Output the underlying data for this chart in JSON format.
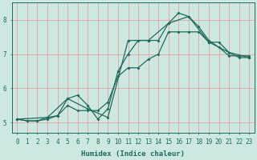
{
  "xlabel": "Humidex (Indice chaleur)",
  "bg_color": "#cce8e0",
  "line_color": "#1e6b5e",
  "grid_color": "#e8a0a0",
  "xlim": [
    -0.5,
    23.5
  ],
  "ylim": [
    4.7,
    8.5
  ],
  "xticks": [
    0,
    1,
    2,
    3,
    4,
    5,
    6,
    7,
    8,
    9,
    10,
    11,
    12,
    13,
    14,
    15,
    16,
    17,
    18,
    19,
    20,
    21,
    22,
    23
  ],
  "yticks": [
    5,
    6,
    7,
    8
  ],
  "series": [
    {
      "x": [
        0,
        1,
        2,
        3,
        4,
        5,
        6,
        7,
        8,
        9,
        10,
        11,
        12,
        13,
        14,
        15,
        16,
        17,
        18,
        19,
        20,
        21,
        22,
        23
      ],
      "y": [
        5.1,
        5.05,
        5.05,
        5.1,
        5.2,
        5.7,
        5.8,
        5.5,
        5.1,
        5.4,
        6.5,
        7.0,
        7.4,
        7.4,
        7.4,
        7.9,
        8.2,
        8.1,
        7.8,
        7.4,
        7.2,
        6.95,
        6.95,
        6.95
      ]
    },
    {
      "x": [
        0,
        1,
        2,
        3,
        4,
        5,
        6,
        7,
        8,
        9,
        10,
        11,
        12,
        13,
        14,
        15,
        16,
        17,
        18,
        19,
        20,
        21,
        22,
        23
      ],
      "y": [
        5.1,
        5.05,
        5.05,
        5.15,
        5.2,
        5.5,
        5.35,
        5.35,
        5.35,
        5.6,
        6.35,
        6.6,
        6.6,
        6.85,
        7.0,
        7.65,
        7.65,
        7.65,
        7.65,
        7.35,
        7.35,
        7.05,
        6.9,
        6.9
      ]
    },
    {
      "x": [
        0,
        3,
        5,
        7,
        9,
        11,
        13,
        15,
        17,
        19,
        21,
        23
      ],
      "y": [
        5.1,
        5.15,
        5.7,
        5.4,
        5.15,
        7.4,
        7.4,
        7.9,
        8.1,
        7.35,
        7.05,
        6.9
      ]
    }
  ],
  "xlabel_fontsize": 6.5,
  "tick_fontsize": 5.5
}
